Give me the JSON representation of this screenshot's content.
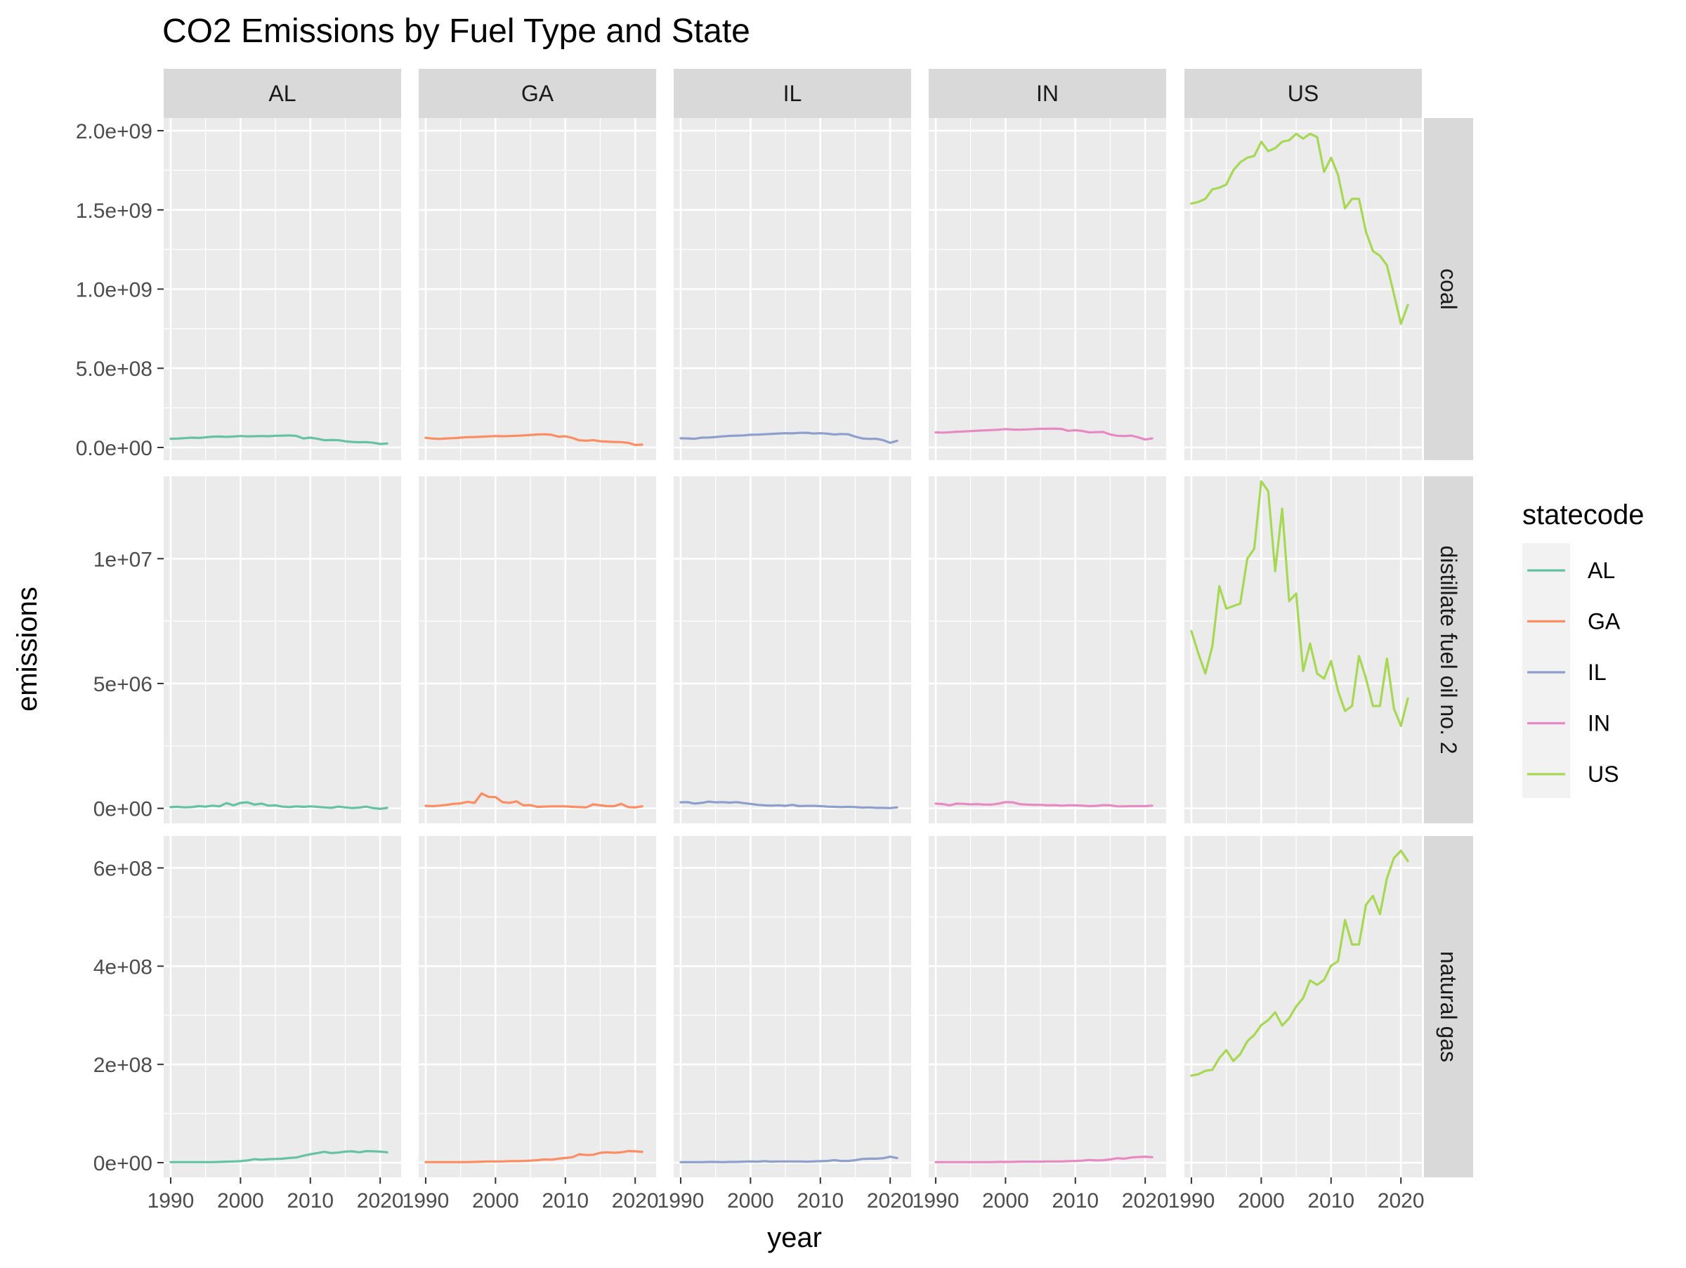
{
  "chart_data": {
    "type": "line",
    "title": "CO2 Emissions by Fuel Type and State",
    "xlabel": "year",
    "ylabel": "emissions",
    "x": [
      1990,
      1991,
      1992,
      1993,
      1994,
      1995,
      1996,
      1997,
      1998,
      1999,
      2000,
      2001,
      2002,
      2003,
      2004,
      2005,
      2006,
      2007,
      2008,
      2009,
      2010,
      2011,
      2012,
      2013,
      2014,
      2015,
      2016,
      2017,
      2018,
      2019,
      2020,
      2021
    ],
    "xlim": [
      1989,
      2023
    ],
    "x_ticks": [
      1990,
      2000,
      2010,
      2020
    ],
    "x_tick_labels": [
      "1990",
      "2000",
      "2010",
      "2020"
    ],
    "columns": [
      "AL",
      "GA",
      "IL",
      "IN",
      "US"
    ],
    "legend": {
      "title": "statecode",
      "placement": "right",
      "entries": [
        {
          "label": "AL",
          "color": "#66C2A5"
        },
        {
          "label": "GA",
          "color": "#FC8D62"
        },
        {
          "label": "IL",
          "color": "#8DA0CB"
        },
        {
          "label": "IN",
          "color": "#E78AC3"
        },
        {
          "label": "US",
          "color": "#A6D854"
        }
      ]
    },
    "rows": [
      {
        "label": "coal",
        "ylim": [
          -80000000.0,
          2080000000.0
        ],
        "y_ticks": [
          0,
          500000000.0,
          1000000000.0,
          1500000000.0,
          2000000000.0
        ],
        "y_tick_labels": [
          "0.0e+00",
          "5.0e+08",
          "1.0e+09",
          "1.5e+09",
          "2.0e+09"
        ],
        "series": {
          "AL": [
            55000000.0,
            56000000.0,
            59000000.0,
            62000000.0,
            60000000.0,
            64000000.0,
            68000000.0,
            69000000.0,
            67000000.0,
            69000000.0,
            72000000.0,
            70000000.0,
            71000000.0,
            72000000.0,
            71000000.0,
            74000000.0,
            75000000.0,
            76000000.0,
            73000000.0,
            57000000.0,
            62000000.0,
            55000000.0,
            46000000.0,
            47000000.0,
            46000000.0,
            39000000.0,
            35000000.0,
            33000000.0,
            34000000.0,
            30000000.0,
            22000000.0,
            25000000.0
          ],
          "GA": [
            61000000.0,
            56000000.0,
            54000000.0,
            57000000.0,
            59000000.0,
            62000000.0,
            65000000.0,
            66000000.0,
            68000000.0,
            70000000.0,
            72000000.0,
            71000000.0,
            72000000.0,
            74000000.0,
            76000000.0,
            79000000.0,
            82000000.0,
            83000000.0,
            80000000.0,
            68000000.0,
            71000000.0,
            60000000.0,
            45000000.0,
            43000000.0,
            46000000.0,
            39000000.0,
            37000000.0,
            35000000.0,
            34000000.0,
            29000000.0,
            16000000.0,
            18000000.0
          ],
          "IL": [
            58000000.0,
            57000000.0,
            55000000.0,
            62000000.0,
            63000000.0,
            66000000.0,
            70000000.0,
            73000000.0,
            75000000.0,
            76000000.0,
            80000000.0,
            81000000.0,
            83000000.0,
            86000000.0,
            88000000.0,
            90000000.0,
            89000000.0,
            92000000.0,
            93000000.0,
            88000000.0,
            90000000.0,
            87000000.0,
            82000000.0,
            85000000.0,
            83000000.0,
            68000000.0,
            57000000.0,
            54000000.0,
            55000000.0,
            46000000.0,
            29000000.0,
            42000000.0
          ],
          "IN": [
            95000000.0,
            94000000.0,
            96000000.0,
            99000000.0,
            101000000.0,
            103000000.0,
            106000000.0,
            108000000.0,
            110000000.0,
            112000000.0,
            116000000.0,
            113000000.0,
            112000000.0,
            114000000.0,
            116000000.0,
            118000000.0,
            118000000.0,
            119000000.0,
            117000000.0,
            105000000.0,
            109000000.0,
            104000000.0,
            95000000.0,
            97000000.0,
            98000000.0,
            82000000.0,
            74000000.0,
            72000000.0,
            75000000.0,
            64000000.0,
            50000000.0,
            57000000.0
          ],
          "US": [
            1540000000.0,
            1550000000.0,
            1570000000.0,
            1630000000.0,
            1640000000.0,
            1660000000.0,
            1750000000.0,
            1800000000.0,
            1830000000.0,
            1840000000.0,
            1930000000.0,
            1870000000.0,
            1890000000.0,
            1930000000.0,
            1940000000.0,
            1980000000.0,
            1950000000.0,
            1980000000.0,
            1960000000.0,
            1740000000.0,
            1830000000.0,
            1720000000.0,
            1510000000.0,
            1570000000.0,
            1570000000.0,
            1360000000.0,
            1240000000.0,
            1210000000.0,
            1150000000.0,
            970000000.0,
            780000000.0,
            900000000.0
          ]
        }
      },
      {
        "label": "distillate fuel oil no. 2",
        "ylim": [
          -600000.0,
          13300000.0
        ],
        "y_ticks": [
          0,
          5000000.0,
          10000000.0
        ],
        "y_tick_labels": [
          "0e+00",
          "5e+06",
          "1e+07"
        ],
        "series": {
          "AL": [
            50000.0,
            60000.0,
            40000.0,
            50000.0,
            90000.0,
            70000.0,
            110000.0,
            80000.0,
            210000.0,
            120000.0,
            220000.0,
            240000.0,
            150000.0,
            190000.0,
            110000.0,
            120000.0,
            70000.0,
            50000.0,
            80000.0,
            60000.0,
            80000.0,
            60000.0,
            40000.0,
            20000.0,
            70000.0,
            40000.0,
            10000.0,
            30000.0,
            70000.0,
            10000.0,
            -20000.0,
            20000.0
          ],
          "GA": [
            100000.0,
            90000.0,
            110000.0,
            140000.0,
            180000.0,
            200000.0,
            260000.0,
            220000.0,
            600000.0,
            460000.0,
            450000.0,
            250000.0,
            220000.0,
            280000.0,
            120000.0,
            130000.0,
            60000.0,
            70000.0,
            80000.0,
            80000.0,
            80000.0,
            60000.0,
            50000.0,
            40000.0,
            160000.0,
            120000.0,
            90000.0,
            90000.0,
            180000.0,
            50000.0,
            40000.0,
            80000.0
          ],
          "IL": [
            240000.0,
            250000.0,
            190000.0,
            220000.0,
            270000.0,
            240000.0,
            250000.0,
            230000.0,
            250000.0,
            210000.0,
            180000.0,
            140000.0,
            120000.0,
            110000.0,
            120000.0,
            100000.0,
            140000.0,
            90000.0,
            100000.0,
            100000.0,
            90000.0,
            70000.0,
            60000.0,
            50000.0,
            60000.0,
            50000.0,
            30000.0,
            40000.0,
            20000.0,
            20000.0,
            10000.0,
            40000.0
          ],
          "IN": [
            190000.0,
            170000.0,
            120000.0,
            190000.0,
            180000.0,
            160000.0,
            170000.0,
            150000.0,
            150000.0,
            190000.0,
            250000.0,
            240000.0,
            170000.0,
            150000.0,
            140000.0,
            140000.0,
            120000.0,
            130000.0,
            110000.0,
            120000.0,
            120000.0,
            110000.0,
            90000.0,
            100000.0,
            130000.0,
            120000.0,
            80000.0,
            80000.0,
            90000.0,
            90000.0,
            90000.0,
            110000.0
          ],
          "US": [
            7100000.0,
            6200000.0,
            5400000.0,
            6500000.0,
            8900000.0,
            8000000.0,
            8100000.0,
            8200000.0,
            10000000.0,
            10400000.0,
            13100000.0,
            12700000.0,
            9500000.0,
            12000000.0,
            8300000.0,
            8600000.0,
            5500000.0,
            6600000.0,
            5400000.0,
            5200000.0,
            5900000.0,
            4700000.0,
            3900000.0,
            4100000.0,
            6100000.0,
            5200000.0,
            4100000.0,
            4100000.0,
            6000000.0,
            4000000.0,
            3300000.0,
            4400000.0
          ]
        }
      },
      {
        "label": "natural gas",
        "ylim": [
          -30000000.0,
          665000000.0
        ],
        "y_ticks": [
          0,
          200000000.0,
          400000000.0,
          600000000.0
        ],
        "y_tick_labels": [
          "0e+00",
          "2e+08",
          "4e+08",
          "6e+08"
        ],
        "series": {
          "AL": [
            1000000.0,
            1000000.0,
            1000000.0,
            1000000.0,
            1000000.0,
            1000000.0,
            1000000.0,
            1500000.0,
            2000000.0,
            2500000.0,
            3000000.0,
            4500000.0,
            7000000.0,
            6000000.0,
            7000000.0,
            7500000.0,
            8000000.0,
            9500000.0,
            10500000.0,
            14000000.0,
            17000000.0,
            19500000.0,
            22000000.0,
            19500000.0,
            20500000.0,
            22500000.0,
            23000000.0,
            21000000.0,
            23500000.0,
            23000000.0,
            22500000.0,
            21000000.0
          ],
          "GA": [
            1000000.0,
            1000000.0,
            1000000.0,
            1000000.0,
            1000000.0,
            1000000.0,
            1000000.0,
            1500000.0,
            2000000.0,
            2500000.0,
            2500000.0,
            2500000.0,
            3000000.0,
            3000000.0,
            3500000.0,
            4000000.0,
            5000000.0,
            6500000.0,
            6000000.0,
            8000000.0,
            9500000.0,
            11000000.0,
            17000000.0,
            15500000.0,
            16000000.0,
            20000000.0,
            21000000.0,
            20000000.0,
            21000000.0,
            23500000.0,
            23000000.0,
            22000000.0
          ],
          "IL": [
            1000000.0,
            1000000.0,
            1000000.0,
            1000000.0,
            1500000.0,
            1500000.0,
            1000000.0,
            1500000.0,
            1500000.0,
            2000000.0,
            2500000.0,
            2000000.0,
            3000000.0,
            2000000.0,
            2500000.0,
            2500000.0,
            2500000.0,
            2500000.0,
            2000000.0,
            2500000.0,
            3000000.0,
            3500000.0,
            5000000.0,
            3500000.0,
            3500000.0,
            5000000.0,
            7500000.0,
            8000000.0,
            8000000.0,
            9000000.0,
            12000000.0,
            9500000.0
          ],
          "IN": [
            1000000.0,
            1000000.0,
            1000000.0,
            1000000.0,
            1000000.0,
            1000000.0,
            1000000.0,
            1000000.0,
            1000000.0,
            1500000.0,
            1500000.0,
            1500000.0,
            2000000.0,
            2000000.0,
            2000000.0,
            2000000.0,
            2500000.0,
            2500000.0,
            2500000.0,
            3000000.0,
            3500000.0,
            4000000.0,
            5500000.0,
            4500000.0,
            5000000.0,
            6500000.0,
            9000000.0,
            8000000.0,
            10500000.0,
            11500000.0,
            12000000.0,
            11000000.0
          ],
          "US": [
            177000000.0,
            180000000.0,
            187000000.0,
            189000000.0,
            213000000.0,
            229000000.0,
            207000000.0,
            221000000.0,
            247000000.0,
            260000000.0,
            280000000.0,
            290000000.0,
            306000000.0,
            279000000.0,
            294000000.0,
            318000000.0,
            335000000.0,
            371000000.0,
            362000000.0,
            372000000.0,
            401000000.0,
            410000000.0,
            494000000.0,
            444000000.0,
            444000000.0,
            525000000.0,
            543000000.0,
            506000000.0,
            579000000.0,
            620000000.0,
            635000000.0,
            614000000.0
          ]
        }
      }
    ]
  }
}
